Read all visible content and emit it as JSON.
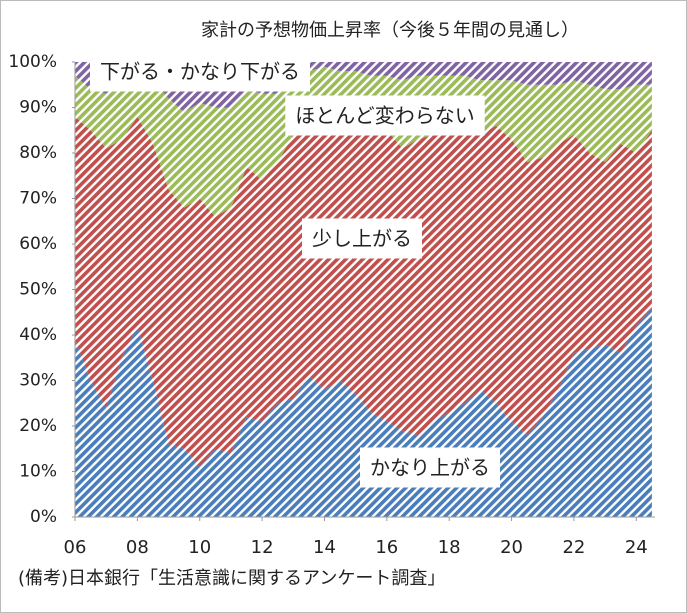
{
  "chart_data": {
    "type": "area",
    "title": "家計の予想物価上昇率（今後５年間の見通し）",
    "source": "(備考)日本銀行「生活意識に関するアンケート調査」",
    "stacked": true,
    "x": [
      2006,
      2006.5,
      2007,
      2007.5,
      2008,
      2008.5,
      2009,
      2009.5,
      2010,
      2010.5,
      2011,
      2011.5,
      2012,
      2012.5,
      2013,
      2013.5,
      2014,
      2014.5,
      2015,
      2015.5,
      2016,
      2016.5,
      2017,
      2017.5,
      2018,
      2018.5,
      2019,
      2019.5,
      2020,
      2020.5,
      2021,
      2021.5,
      2022,
      2022.5,
      2023,
      2023.5,
      2024,
      2024.5
    ],
    "series": [
      {
        "name": "かなり上がる",
        "color": "#4a7ebb",
        "values": [
          39,
          30,
          24,
          35,
          42,
          30,
          16,
          15,
          11,
          15,
          14,
          22,
          21,
          25,
          26,
          31,
          28,
          30,
          27,
          23,
          21,
          19,
          18,
          21,
          23,
          25,
          28,
          25,
          21,
          18,
          22,
          28,
          36,
          37,
          38,
          36,
          42,
          46
        ]
      },
      {
        "name": "少し上がる",
        "color": "#c0504d",
        "values": [
          49,
          55,
          57,
          48,
          46,
          52,
          56,
          53,
          59,
          51,
          54,
          55,
          53,
          53,
          58,
          57,
          62,
          58,
          60,
          62,
          64,
          62,
          65,
          63,
          63,
          61,
          56,
          61,
          62,
          60,
          57,
          54,
          48,
          43,
          40,
          46,
          38,
          39
        ]
      },
      {
        "name": "ほとんど変わらない",
        "color": "#9bbb59",
        "values": [
          9,
          9,
          12,
          13,
          10,
          14,
          20,
          21,
          21,
          24,
          22,
          17,
          19,
          15,
          11,
          10,
          9,
          10,
          11,
          12,
          12,
          15,
          14,
          13,
          11,
          11,
          12,
          10,
          13,
          17,
          16,
          13,
          12,
          15,
          16,
          12,
          15,
          10
        ]
      },
      {
        "name": "下がる・かなり下がる",
        "color": "#8064a2",
        "values": [
          3,
          6,
          7,
          4,
          2,
          4,
          8,
          11,
          9,
          10,
          10,
          6,
          7,
          7,
          5,
          2,
          1,
          2,
          2,
          3,
          3,
          4,
          3,
          3,
          3,
          3,
          4,
          4,
          4,
          5,
          5,
          5,
          4,
          5,
          6,
          6,
          5,
          5
        ]
      }
    ],
    "xlim": [
      2006,
      2024.6
    ],
    "xticks": [
      {
        "value": 2006,
        "label": "06"
      },
      {
        "value": 2008,
        "label": "08"
      },
      {
        "value": 2010,
        "label": "10"
      },
      {
        "value": 2012,
        "label": "12"
      },
      {
        "value": 2014,
        "label": "14"
      },
      {
        "value": 2016,
        "label": "16"
      },
      {
        "value": 2018,
        "label": "18"
      },
      {
        "value": 2020,
        "label": "20"
      },
      {
        "value": 2022,
        "label": "22"
      },
      {
        "value": 2024,
        "label": "24"
      }
    ],
    "ylim": [
      0,
      100
    ],
    "yticks": [
      {
        "value": 0,
        "label": "0%"
      },
      {
        "value": 10,
        "label": "10%"
      },
      {
        "value": 20,
        "label": "20%"
      },
      {
        "value": 30,
        "label": "30%"
      },
      {
        "value": 40,
        "label": "40%"
      },
      {
        "value": 50,
        "label": "50%"
      },
      {
        "value": 60,
        "label": "60%"
      },
      {
        "value": 70,
        "label": "70%"
      },
      {
        "value": 80,
        "label": "80%"
      },
      {
        "value": 90,
        "label": "90%"
      },
      {
        "value": 100,
        "label": "100%"
      }
    ]
  }
}
